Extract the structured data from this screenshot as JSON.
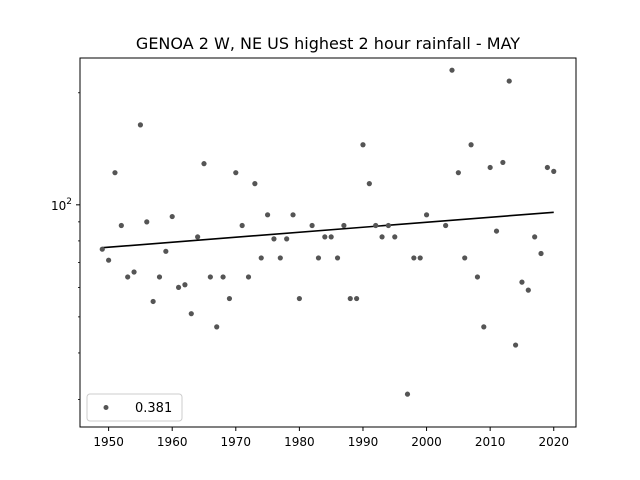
{
  "chart_data": {
    "type": "scatter",
    "title": "GENOA 2 W, NE US highest 2 hour rainfall - MAY",
    "xlabel": "",
    "ylabel": "",
    "yscale": "log",
    "xlim": [
      1945.5,
      2023.5
    ],
    "ylim": [
      25.3,
      248
    ],
    "x_ticks": [
      1950,
      1960,
      1970,
      1980,
      1990,
      2000,
      2010,
      2020
    ],
    "y_ticks": [
      {
        "value": 100,
        "base": "10",
        "exp": "2"
      }
    ],
    "legend": {
      "label": "0.381",
      "position": "lower-left"
    },
    "series": [
      {
        "name": "highest 2 hour rainfall",
        "color": "#555555",
        "x": [
          1949,
          1950,
          1951,
          1952,
          1953,
          1954,
          1955,
          1956,
          1957,
          1958,
          1959,
          1960,
          1961,
          1962,
          1963,
          1964,
          1965,
          1966,
          1967,
          1968,
          1969,
          1970,
          1971,
          1972,
          1973,
          1974,
          1975,
          1976,
          1977,
          1978,
          1979,
          1980,
          1982,
          1983,
          1984,
          1985,
          1986,
          1987,
          1988,
          1989,
          1990,
          1991,
          1992,
          1993,
          1994,
          1995,
          1997,
          1998,
          1999,
          2000,
          2003,
          2004,
          2005,
          2006,
          2007,
          2008,
          2009,
          2010,
          2011,
          2012,
          2013,
          2014,
          2015,
          2016,
          2017,
          2018,
          2019,
          2020
        ],
        "y": [
          76,
          71,
          122,
          88,
          64,
          66,
          164,
          90,
          55,
          64,
          75,
          93,
          60,
          61,
          51,
          82,
          129,
          64,
          47,
          64,
          56,
          122,
          88,
          64,
          114,
          72,
          94,
          81,
          72,
          81,
          94,
          56,
          88,
          72,
          82,
          82,
          72,
          88,
          56,
          56,
          145,
          114,
          88,
          82,
          88,
          82,
          31,
          72,
          72,
          94,
          88,
          230,
          122,
          72,
          145,
          64,
          47,
          126,
          85,
          130,
          215,
          42,
          62,
          59,
          82,
          74,
          126,
          123
        ]
      }
    ],
    "trendline": {
      "name": "linear fit",
      "color": "#000000",
      "x": [
        1949,
        2020
      ],
      "y": [
        76.7,
        95.5
      ]
    }
  }
}
